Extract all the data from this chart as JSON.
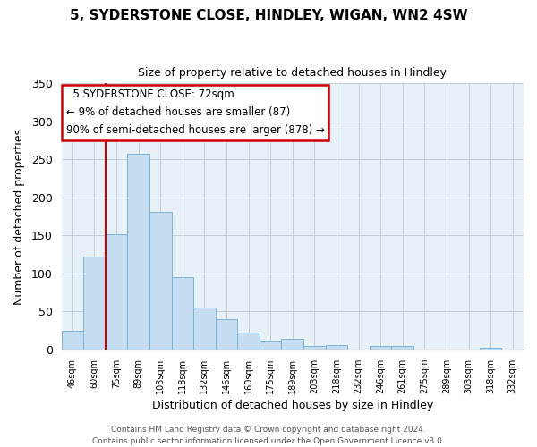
{
  "title": "5, SYDERSTONE CLOSE, HINDLEY, WIGAN, WN2 4SW",
  "subtitle": "Size of property relative to detached houses in Hindley",
  "xlabel": "Distribution of detached houses by size in Hindley",
  "ylabel": "Number of detached properties",
  "bar_color": "#c5ddf0",
  "bar_edge_color": "#7fb3d3",
  "bg_color": "#e8f0f8",
  "categories": [
    "46sqm",
    "60sqm",
    "75sqm",
    "89sqm",
    "103sqm",
    "118sqm",
    "132sqm",
    "146sqm",
    "160sqm",
    "175sqm",
    "189sqm",
    "203sqm",
    "218sqm",
    "232sqm",
    "246sqm",
    "261sqm",
    "275sqm",
    "289sqm",
    "303sqm",
    "318sqm",
    "332sqm"
  ],
  "values": [
    24,
    122,
    152,
    257,
    181,
    95,
    55,
    40,
    22,
    12,
    14,
    5,
    6,
    0,
    5,
    5,
    0,
    0,
    0,
    2,
    0
  ],
  "ylim": [
    0,
    350
  ],
  "yticks": [
    0,
    50,
    100,
    150,
    200,
    250,
    300,
    350
  ],
  "property_label": "5 SYDERSTONE CLOSE: 72sqm",
  "annotation_line1": "← 9% of detached houses are smaller (87)",
  "annotation_line2": "90% of semi-detached houses are larger (878) →",
  "annotation_box_color": "#ffffff",
  "annotation_box_edge_color": "#cc0000",
  "line_color": "#cc0000",
  "line_x_index": 1.52,
  "footer1": "Contains HM Land Registry data © Crown copyright and database right 2024.",
  "footer2": "Contains public sector information licensed under the Open Government Licence v3.0."
}
